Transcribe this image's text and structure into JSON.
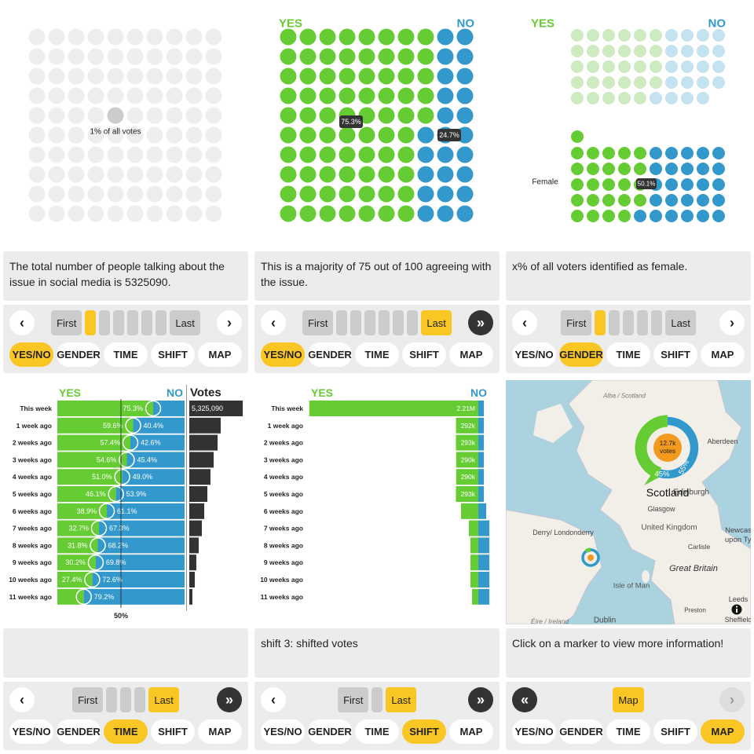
{
  "tabs": [
    "YES/NO",
    "GENDER",
    "TIME",
    "SHIFT",
    "MAP"
  ],
  "panels": [
    {
      "caption": "The total number of people talking about the issue in social media is 5325090.",
      "active_tab": 0,
      "nav": [
        {
          "label": "‹",
          "style": "round-light"
        },
        {
          "label": "First",
          "style": "gray"
        },
        {
          "style": "step-active"
        },
        {
          "style": "step"
        },
        {
          "style": "step"
        },
        {
          "style": "step"
        },
        {
          "style": "step"
        },
        {
          "style": "step"
        },
        {
          "label": "Last",
          "style": "gray"
        },
        {
          "label": "›",
          "style": "round-light"
        }
      ],
      "chart_data": {
        "type": "dot-grid",
        "label": "1% of all votes",
        "values": [
          1
        ],
        "color": "#cccccc"
      }
    },
    {
      "caption": "This is a majority of 75 out of 100 agreeing with the issue.",
      "active_tab": 0,
      "nav": [
        {
          "label": "‹",
          "style": "round-light"
        },
        {
          "label": "First",
          "style": "gray"
        },
        {
          "style": "step"
        },
        {
          "style": "step"
        },
        {
          "style": "step"
        },
        {
          "style": "step"
        },
        {
          "style": "step"
        },
        {
          "style": "step"
        },
        {
          "label": "Last",
          "style": "yellow"
        },
        {
          "label": "»",
          "style": "round-dark"
        }
      ],
      "chart_data": {
        "type": "waffle",
        "dot_counts": [
          75,
          25
        ],
        "series": [
          {
            "name": "YES",
            "color": "#66cc33",
            "values": [
              75.3
            ],
            "value_labels": [
              "75.3%"
            ]
          },
          {
            "name": "NO",
            "color": "#3399cc",
            "values": [
              24.7
            ],
            "value_labels": [
              "24.7%"
            ]
          }
        ]
      }
    },
    {
      "caption": "x% of all voters identified as female.",
      "active_tab": 1,
      "nav": [
        {
          "label": "‹",
          "style": "round-light"
        },
        {
          "label": "First",
          "style": "gray"
        },
        {
          "style": "step-active"
        },
        {
          "style": "step"
        },
        {
          "style": "step"
        },
        {
          "style": "step"
        },
        {
          "style": "step"
        },
        {
          "label": "Last",
          "style": "gray"
        },
        {
          "label": "›",
          "style": "round-light"
        }
      ],
      "chart_data": {
        "type": "gender-waffle",
        "label": "Female",
        "values": [
          50.1
        ],
        "value_labels": [
          "50.1%"
        ],
        "series": [
          {
            "name": "YES",
            "color": "#66cc33",
            "faded_color": "#cdeac0"
          },
          {
            "name": "NO",
            "color": "#3399cc",
            "faded_color": "#c5e2f0"
          }
        ],
        "groups": [
          {
            "dot_counts": [
              29,
              20
            ]
          },
          {
            "dot_counts": [
              25,
              26
            ]
          }
        ]
      }
    },
    {
      "active_tab": 2,
      "nav": [
        {
          "label": "‹",
          "style": "round-light"
        },
        {
          "label": "First",
          "style": "gray"
        },
        {
          "style": "step"
        },
        {
          "style": "step"
        },
        {
          "style": "step"
        },
        {
          "label": "Last",
          "style": "yellow"
        },
        {
          "label": "»",
          "style": "round-dark"
        }
      ],
      "chart_data": {
        "type": "time-bars",
        "categories": [
          "This week",
          "1 week ago",
          "2 weeks ago",
          "3 weeks ago",
          "4 weeks ago",
          "5 weeks ago",
          "6 weeks ago",
          "7 weeks ago",
          "8 weeks ago",
          "9 weeks ago",
          "10 weeks ago",
          "11 weeks ago"
        ],
        "series": [
          {
            "name": "YES",
            "color": "#66cc33",
            "values": [
              75.3,
              59.6,
              57.4,
              54.6,
              51.0,
              46.1,
              38.9,
              32.7,
              31.8,
              30.2,
              27.4,
              20.8
            ],
            "value_labels": [
              "75.3%",
              "59.6%",
              "57.4%",
              "54.6%",
              "51.0%",
              "46.1%",
              "38.9%",
              "32.7%",
              "31.8%",
              "30.2%",
              "27.4%",
              null
            ]
          },
          {
            "name": "NO",
            "color": "#3399cc",
            "values": [
              24.7,
              40.4,
              42.6,
              45.4,
              49.0,
              53.9,
              61.1,
              67.3,
              68.2,
              69.8,
              72.6,
              79.2
            ],
            "value_labels": [
              null,
              "40.4%",
              "42.6%",
              "45.4%",
              "49.0%",
              "53.9%",
              "61.1%",
              "67.3%",
              "68.2%",
              "69.8%",
              "72.6%",
              "79.2%"
            ]
          }
        ],
        "votes": {
          "name": "Votes",
          "color": "#333333",
          "values": [
            5325090,
            3130000,
            2820000,
            2430000,
            2110000,
            1800000,
            1490000,
            1250000,
            940000,
            700000,
            550000,
            310000
          ],
          "value_labels": [
            "5,325,090",
            null,
            null,
            null,
            null,
            null,
            null,
            null,
            null,
            null,
            null,
            null
          ]
        },
        "xlim": [
          0,
          100
        ],
        "xticks": [
          {
            "value": 50,
            "label": "50%"
          }
        ],
        "votes_lim": [
          0,
          5400000
        ]
      }
    },
    {
      "caption": "shift 3: shifted votes",
      "active_tab": 3,
      "nav": [
        {
          "label": "‹",
          "style": "round-light"
        },
        {
          "label": "First",
          "style": "gray"
        },
        {
          "style": "step"
        },
        {
          "label": "Last",
          "style": "yellow"
        },
        {
          "label": "»",
          "style": "round-dark"
        }
      ],
      "chart_data": {
        "type": "shift-bars",
        "categories": [
          "This week",
          "1 week ago",
          "2 weeks ago",
          "3 weeks ago",
          "4 weeks ago",
          "5 weeks ago",
          "6 weeks ago",
          "7 weeks ago",
          "8 weeks ago",
          "9 weeks ago",
          "10 weeks ago",
          "11 weeks ago"
        ],
        "series": [
          {
            "name": "YES",
            "color": "#66cc33",
            "values": [
              2210000,
              292000,
              293000,
              290000,
              290000,
              293000,
              226000,
              123000,
              103000,
              103000,
              103000,
              82000
            ],
            "value_labels": [
              "2.21M",
              "292k",
              "293k",
              "290k",
              "290k",
              "293k",
              null,
              null,
              null,
              null,
              null,
              null
            ]
          },
          {
            "name": "NO",
            "color": "#3399cc",
            "values": [
              72000,
              72000,
              72000,
              72000,
              72000,
              72000,
              103000,
              144000,
              144000,
              144000,
              144000,
              144000
            ]
          }
        ],
        "xlim": [
          0,
          2300000
        ]
      }
    },
    {
      "caption": "Click on a marker to view more information!",
      "active_tab": 4,
      "nav": [
        {
          "label": "«",
          "style": "round-dark"
        },
        {
          "label": "Map",
          "style": "yellow"
        },
        {
          "label": "›",
          "style": "round-disabled"
        }
      ],
      "chart_data": {
        "type": "map",
        "region_label": "Scotland",
        "colors": [
          "#66cc33",
          "#3399cc"
        ],
        "places": [
          {
            "label": "Alba / Scotland"
          },
          {
            "label": "Aberdeen"
          },
          {
            "label": "Edinburgh"
          },
          {
            "label": "Glasgow"
          },
          {
            "label": "United Kingdom"
          },
          {
            "label": "Derry/ Londonderry"
          },
          {
            "label": "Carlisle"
          },
          {
            "label": "Newcastle upon Tyne"
          },
          {
            "label": "Great Britain"
          },
          {
            "label": "Isle of Man"
          },
          {
            "label": "Preston"
          },
          {
            "label": "Leeds"
          },
          {
            "label": "Sheffield"
          },
          {
            "label": "Éire / Ireland"
          },
          {
            "label": "Dublin"
          }
        ],
        "markers": [
          {
            "label": "12.7k votes",
            "values": [
              45,
              55
            ],
            "value_labels": [
              "45%",
              "55%"
            ]
          },
          {
            "values": [
              10,
              90
            ]
          }
        ]
      }
    }
  ]
}
